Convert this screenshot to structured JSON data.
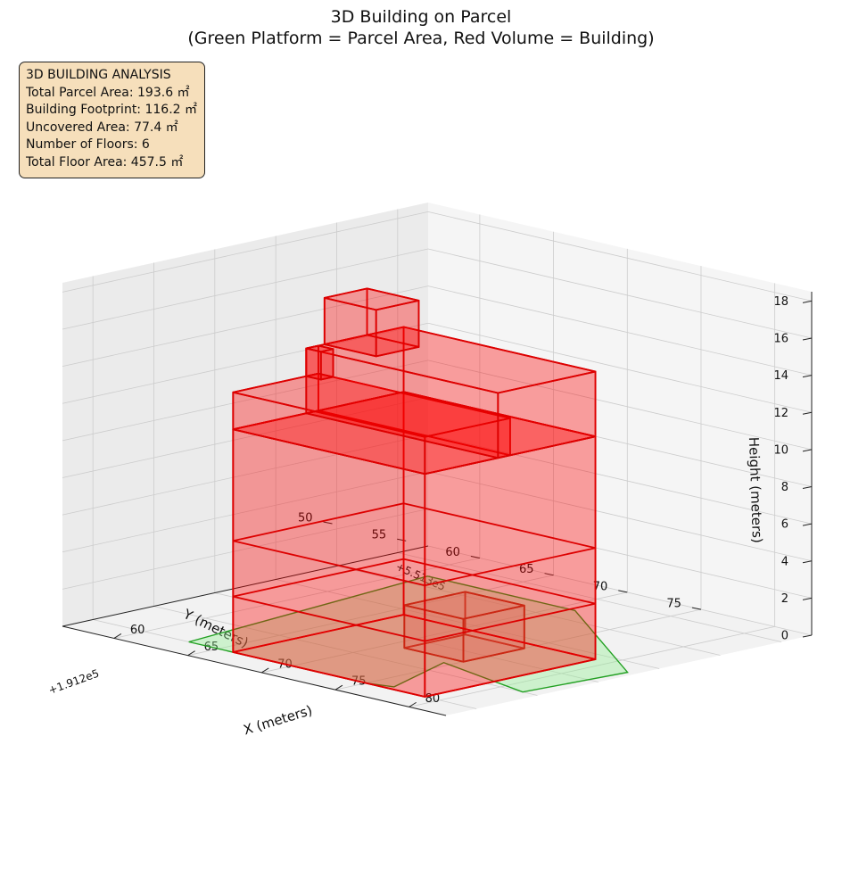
{
  "chart_data": {
    "type": "3d-bar",
    "title": "3D Building on Parcel",
    "subtitle": "(Green Platform = Parcel Area, Red Volume = Building)",
    "xlabel": "X (meters)",
    "ylabel": "Y (meters)",
    "zlabel": "Height (meters)",
    "x_offset": "+1.912e5",
    "y_offset": "+5.513e5",
    "x_ticks": [
      60,
      65,
      70,
      75,
      80
    ],
    "y_ticks": [
      50,
      55,
      60,
      65,
      70,
      75
    ],
    "z_ticks": [
      0,
      2,
      4,
      6,
      8,
      10,
      12,
      14,
      16,
      18
    ],
    "xlim": [
      56.5,
      82.5
    ],
    "ylim": [
      47.5,
      77.5
    ],
    "zlim": [
      0,
      18.5
    ],
    "grid": true,
    "colors": {
      "building_face": "#ff0000",
      "building_edge": "#dd0000",
      "parcel_face": "#90ee90",
      "parcel_edge": "#22a022",
      "annex_face": "#d9a08a",
      "annex_edge": "#b04020"
    },
    "parcel_polygon": [
      [
        71,
        53
      ],
      [
        61,
        53
      ],
      [
        63,
        75
      ],
      [
        75,
        75
      ],
      [
        76.5,
        74.5
      ],
      [
        74.5,
        68
      ],
      [
        81.5,
        70
      ],
      [
        82,
        62
      ],
      [
        71,
        53
      ]
    ],
    "building_blocks": [
      {
        "name": "floors-main",
        "x": [
          66,
          79
        ],
        "y": [
          61,
          75
        ],
        "z": [
          0,
          12
        ]
      },
      {
        "name": "floors-upper",
        "x": [
          66,
          79
        ],
        "y": [
          68,
          75
        ],
        "z": [
          12,
          14
        ]
      },
      {
        "name": "upper-wing",
        "x": [
          66,
          79
        ],
        "y": [
          61,
          69
        ],
        "z": [
          12,
          15.5
        ]
      },
      {
        "name": "upper-column",
        "x": [
          66,
          67
        ],
        "y": [
          68,
          69
        ],
        "z": [
          14,
          15.5
        ]
      },
      {
        "name": "roof-tower",
        "x": [
          66,
          69.5
        ],
        "y": [
          64,
          67.5
        ],
        "z": [
          15.5,
          18
        ]
      }
    ],
    "floor_lines_z": [
      3,
      6
    ],
    "annex_block": {
      "x": [
        71,
        75
      ],
      "y": [
        62,
        67
      ],
      "z": [
        0,
        2.3
      ]
    },
    "info_box": {
      "lines": [
        "3D BUILDING ANALYSIS",
        "Total Parcel Area: 193.6 ㎡",
        "Building Footprint: 116.2 ㎡",
        "Uncovered Area: 77.4 ㎡",
        "Number of Floors: 6",
        "Total Floor Area: 457.5 ㎡"
      ]
    }
  }
}
